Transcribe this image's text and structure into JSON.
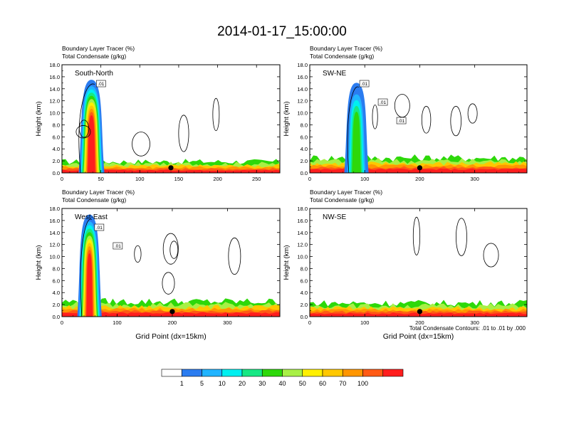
{
  "title": "2014-01-17_15:00:00",
  "colors": {
    "levels": [
      "#ffffff",
      "#2b7cf0",
      "#21b4ff",
      "#00f0f0",
      "#17e884",
      "#2dd80a",
      "#a8f046",
      "#fff000",
      "#ffc800",
      "#ff9600",
      "#ff5a14",
      "#ff1e1e"
    ],
    "contour": "#000000",
    "marker": "#000000"
  },
  "colorbar": {
    "labels": [
      "1",
      "5",
      "10",
      "20",
      "30",
      "40",
      "50",
      "60",
      "70",
      "100"
    ]
  },
  "footnote": "Total Condensate Contours: .01 to .01 by .000",
  "chart_data": [
    {
      "type": "heatmap",
      "panel": "top-left",
      "subtitle_line1": "Boundary Layer Tracer   (%)",
      "subtitle_line2": "Total Condensate   (g/kg)",
      "annotation": "South-North",
      "ylabel": "Height (km)",
      "xlabel": "",
      "xlim": [
        0,
        280
      ],
      "ylim": [
        0,
        18
      ],
      "xticks": [
        0,
        50,
        100,
        150,
        200,
        250
      ],
      "yticks": [
        "0.0",
        "2.0",
        "4.0",
        "6.0",
        "8.0",
        "10.0",
        "12.0",
        "14.0",
        "16.0",
        "18.0"
      ],
      "contour_labels": [
        ".01"
      ],
      "surface_marker_x": 140,
      "plume": {
        "x_center": 38,
        "top_km": 15.5,
        "max_pct": 100
      },
      "boundary_layer_top_km": 1.5
    },
    {
      "type": "heatmap",
      "panel": "top-right",
      "subtitle_line1": "Boundary Layer Tracer   (%)",
      "subtitle_line2": "Total Condensate   (g/kg)",
      "annotation": "SW-NE",
      "ylabel": "Height (km)",
      "xlabel": "",
      "xlim": [
        0,
        395
      ],
      "ylim": [
        0,
        18
      ],
      "xticks": [
        0,
        100,
        200,
        300
      ],
      "yticks": [
        "0.0",
        "2.0",
        "4.0",
        "6.0",
        "8.0",
        "10.0",
        "12.0",
        "14.0",
        "16.0",
        "18.0"
      ],
      "contour_labels": [
        ".01",
        ".01",
        ".01"
      ],
      "surface_marker_x": 200,
      "plume": {
        "x_center": 85,
        "top_km": 15.0,
        "max_pct": 40
      },
      "boundary_layer_top_km": 2.0
    },
    {
      "type": "heatmap",
      "panel": "bottom-left",
      "subtitle_line1": "Boundary Layer Tracer   (%)",
      "subtitle_line2": "Total Condensate   (g/kg)",
      "annotation": "West-East",
      "ylabel": "Height (km)",
      "xlabel": "Grid Point (dx=15km)",
      "xlim": [
        0,
        395
      ],
      "ylim": [
        0,
        18
      ],
      "xticks": [
        0,
        100,
        200,
        300
      ],
      "yticks": [
        "0.0",
        "2.0",
        "4.0",
        "6.0",
        "8.0",
        "10.0",
        "12.0",
        "14.0",
        "16.0",
        "18.0"
      ],
      "contour_labels": [
        ".01",
        ".01"
      ],
      "surface_marker_x": 200,
      "plume": {
        "x_center": 50,
        "top_km": 17.0,
        "max_pct": 100
      },
      "boundary_layer_top_km": 2.0
    },
    {
      "type": "heatmap",
      "panel": "bottom-right",
      "subtitle_line1": "Boundary Layer Tracer   (%)",
      "subtitle_line2": "Total Condensate   (g/kg)",
      "annotation": "NW-SE",
      "ylabel": "Height (km)",
      "xlabel": "Grid Point (dx=15km)",
      "xlim": [
        0,
        395
      ],
      "ylim": [
        0,
        18
      ],
      "xticks": [
        0,
        100,
        200,
        300
      ],
      "yticks": [
        "0.0",
        "2.0",
        "4.0",
        "6.0",
        "8.0",
        "10.0",
        "12.0",
        "14.0",
        "16.0",
        "18.0"
      ],
      "contour_labels": [],
      "surface_marker_x": 200,
      "plume": null,
      "boundary_layer_top_km": 1.8
    }
  ]
}
